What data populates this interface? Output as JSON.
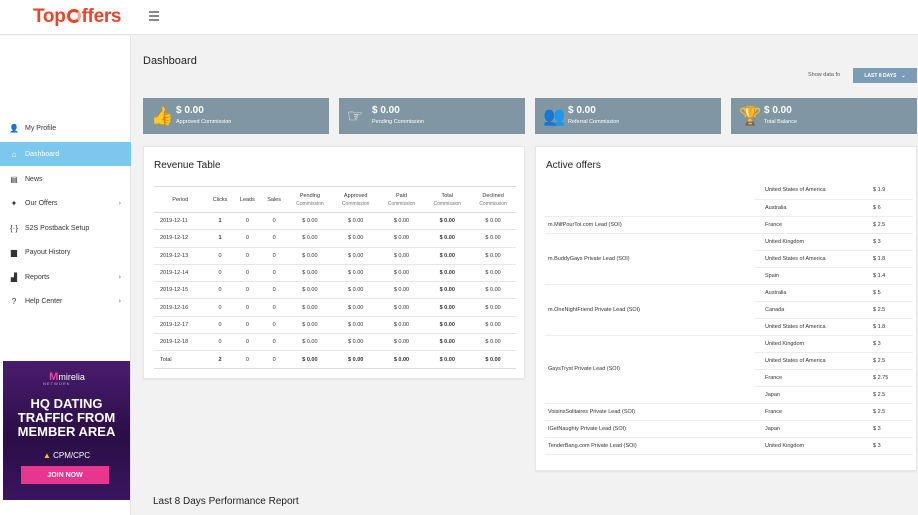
{
  "brand": {
    "logo_pre": "Top",
    "logo_post": "ffers"
  },
  "sidebar": {
    "items": [
      {
        "label": "My Profile",
        "icon": "user-icon",
        "glyph": "👤",
        "chevron": ""
      },
      {
        "label": "Dashboard",
        "icon": "home-icon",
        "glyph": "⌂",
        "chevron": ""
      },
      {
        "label": "News",
        "icon": "newspaper-icon",
        "glyph": "▤",
        "chevron": ""
      },
      {
        "label": "Our Offers",
        "icon": "offers-icon",
        "glyph": "✦",
        "chevron": "›"
      },
      {
        "label": "S2S Postback Setup",
        "icon": "code-icon",
        "glyph": "{·}",
        "chevron": ""
      },
      {
        "label": "Payout History",
        "icon": "briefcase-icon",
        "glyph": "▆",
        "chevron": ""
      },
      {
        "label": "Reports",
        "icon": "chart-icon",
        "glyph": "▟",
        "chevron": "›"
      },
      {
        "label": "Help Center",
        "icon": "help-icon",
        "glyph": "?",
        "chevron": "›"
      }
    ],
    "active_index": 1,
    "ad": {
      "brand": "mirelia",
      "network": "NETWORK",
      "line1": "HQ DATING",
      "line2": "TRAFFIC FROM",
      "line3": "MEMBER AREA",
      "cpm": "CPM/CPC",
      "cta": "JOIN NOW"
    }
  },
  "header": {
    "title": "Dashboard",
    "show_data_label": "Show data fo",
    "period_value": "LAST 8 DAYS"
  },
  "stats": [
    {
      "value": "$ 0.00",
      "label": "Approved Commission",
      "icon": "thumbs-up-icon",
      "glyph": "👍"
    },
    {
      "value": "$ 0.00",
      "label": "Pending Commission",
      "icon": "pointing-hand-icon",
      "glyph": "☞"
    },
    {
      "value": "$ 0.00",
      "label": "Referral Commission",
      "icon": "users-icon",
      "glyph": "👥"
    },
    {
      "value": "$ 0.00",
      "label": "Total Balance",
      "icon": "trophy-icon",
      "glyph": "🏆"
    }
  ],
  "revenue": {
    "title": "Revenue Table",
    "headers": [
      {
        "main": "Period",
        "sub": ""
      },
      {
        "main": "Clicks",
        "sub": ""
      },
      {
        "main": "Leads",
        "sub": ""
      },
      {
        "main": "Sales",
        "sub": ""
      },
      {
        "main": "Pending",
        "sub": "Commission"
      },
      {
        "main": "Approved",
        "sub": "Commission"
      },
      {
        "main": "Paid",
        "sub": "Commission"
      },
      {
        "main": "Total",
        "sub": "Commission"
      },
      {
        "main": "Declined",
        "sub": "Commission"
      }
    ],
    "rows": [
      [
        "2019-12-11",
        "1",
        "0",
        "0",
        "$ 0.00",
        "$ 0.00",
        "$ 0.00",
        "$ 0.00",
        "$ 0.00"
      ],
      [
        "2019-12-12",
        "1",
        "0",
        "0",
        "$ 0.00",
        "$ 0.00",
        "$ 0.00",
        "$ 0.00",
        "$ 0.00"
      ],
      [
        "2019-12-13",
        "0",
        "0",
        "0",
        "$ 0.00",
        "$ 0.00",
        "$ 0.00",
        "$ 0.00",
        "$ 0.00"
      ],
      [
        "2019-12-14",
        "0",
        "0",
        "0",
        "$ 0.00",
        "$ 0.00",
        "$ 0.00",
        "$ 0.00",
        "$ 0.00"
      ],
      [
        "2019-12-15",
        "0",
        "0",
        "0",
        "$ 0.00",
        "$ 0.00",
        "$ 0.00",
        "$ 0.00",
        "$ 0.00"
      ],
      [
        "2019-12-16",
        "0",
        "0",
        "0",
        "$ 0.00",
        "$ 0.00",
        "$ 0.00",
        "$ 0.00",
        "$ 0.00"
      ],
      [
        "2019-12-17",
        "0",
        "0",
        "0",
        "$ 0.00",
        "$ 0.00",
        "$ 0.00",
        "$ 0.00",
        "$ 0.00"
      ],
      [
        "2019-12-18",
        "0",
        "0",
        "0",
        "$ 0.00",
        "$ 0.00",
        "$ 0.00",
        "$ 0.00",
        "$ 0.00"
      ]
    ],
    "total": [
      "Total",
      "2",
      "0",
      "0",
      "$ 0.00",
      "$ 0.00",
      "$ 0.00",
      "$ 0.00",
      "$ 0.00"
    ]
  },
  "offers": {
    "title": "Active offers",
    "groups": [
      {
        "name": "",
        "rows": [
          [
            "United States of America",
            "$ 1.9"
          ],
          [
            "Australia",
            "$ 6"
          ]
        ]
      },
      {
        "name": "m.MilfPourToi.com Lead (SOI)",
        "rows": [
          [
            "France",
            "$ 2.5"
          ]
        ]
      },
      {
        "name": "m.BuddyGays Private Lead (SOI)",
        "rows": [
          [
            "United Kingdom",
            "$ 3"
          ],
          [
            "United States of America",
            "$ 1.8"
          ],
          [
            "Spain",
            "$ 1.4"
          ]
        ]
      },
      {
        "name": "m.OneNightFriend Private Lead (SOI)",
        "rows": [
          [
            "Australia",
            "$ 5"
          ],
          [
            "Canada",
            "$ 2.5"
          ],
          [
            "United States of America",
            "$ 1.8"
          ]
        ]
      },
      {
        "name": "GaysTryst Private Lead (SOI)",
        "rows": [
          [
            "United Kingdom",
            "$ 3"
          ],
          [
            "United States of America",
            "$ 2.5"
          ],
          [
            "France",
            "$ 2.75"
          ],
          [
            "Japan",
            "$ 2.5"
          ]
        ]
      },
      {
        "name": "VoisinsSolitaires Private Lead (SOI)",
        "rows": [
          [
            "France",
            "$ 2.5"
          ]
        ]
      },
      {
        "name": "IGetNaughty Private Lead (SOI)",
        "rows": [
          [
            "Japan",
            "$ 3"
          ]
        ]
      },
      {
        "name": "TenderBang.com Private Lead (SOI)",
        "rows": [
          [
            "United Kingdom",
            "$ 3"
          ]
        ]
      }
    ]
  },
  "performance": {
    "title": "Last 8 Days Performance Report"
  },
  "colors": {
    "accent": "#7cc7ee",
    "card": "#8097a3",
    "brand": "#e8452c",
    "ad_button": "#e8368f"
  }
}
